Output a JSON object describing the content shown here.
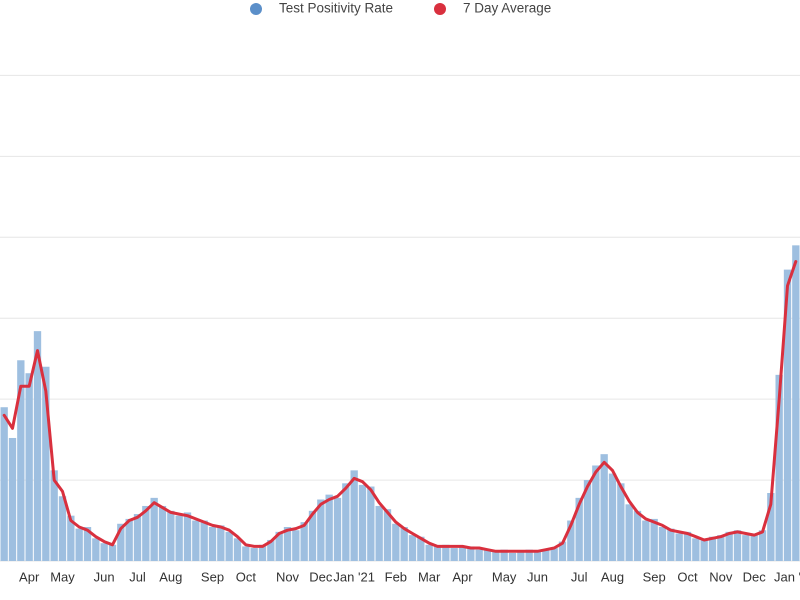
{
  "chart_data": {
    "type": "bar_line",
    "categories": [
      null,
      null,
      null,
      "Apr",
      null,
      null,
      null,
      "May",
      null,
      null,
      null,
      null,
      "Jun",
      null,
      null,
      null,
      "Jul",
      null,
      null,
      null,
      "Aug",
      null,
      null,
      null,
      null,
      "Sep",
      null,
      null,
      null,
      "Oct",
      null,
      null,
      null,
      null,
      "Nov",
      null,
      null,
      null,
      "Dec",
      null,
      null,
      null,
      "Jan '21",
      null,
      null,
      null,
      null,
      "Feb",
      null,
      null,
      null,
      "Mar",
      null,
      null,
      null,
      "Apr",
      null,
      null,
      null,
      null,
      "May",
      null,
      null,
      null,
      "Jun",
      null,
      null,
      null,
      null,
      "Jul",
      null,
      null,
      null,
      "Aug",
      null,
      null,
      null,
      null,
      "Sep",
      null,
      null,
      null,
      "Oct",
      null,
      null,
      null,
      "Nov",
      null,
      null,
      null,
      "Dec",
      null,
      null,
      null,
      "Jan '",
      null
    ],
    "series": [
      {
        "name": "Test Positivity Rate",
        "color": "#9ebfe0",
        "legend_color": "#5b8fc9",
        "kind": "bar",
        "values": [
          9.5,
          7.6,
          12.4,
          11.6,
          14.2,
          12.0,
          5.6,
          4.0,
          2.8,
          2.0,
          2.1,
          1.4,
          1.1,
          1.0,
          2.3,
          2.6,
          2.9,
          3.4,
          3.9,
          3.4,
          3.1,
          2.8,
          3.0,
          2.5,
          2.5,
          2.1,
          2.2,
          1.8,
          1.4,
          0.9,
          0.8,
          1.0,
          1.3,
          1.8,
          2.1,
          1.9,
          2.4,
          3.1,
          3.8,
          4.1,
          3.9,
          4.8,
          5.6,
          4.7,
          4.6,
          3.4,
          3.2,
          2.3,
          2.1,
          1.6,
          1.5,
          1.0,
          0.9,
          1.0,
          0.8,
          0.9,
          0.9,
          0.7,
          0.7,
          0.6,
          0.7,
          0.5,
          0.6,
          0.7,
          0.6,
          0.7,
          0.8,
          1.2,
          2.5,
          3.9,
          5.0,
          5.9,
          6.6,
          5.4,
          4.8,
          3.5,
          3.1,
          2.5,
          2.6,
          2.1,
          2.0,
          1.7,
          1.8,
          1.4,
          1.3,
          1.5,
          1.6,
          1.8,
          1.9,
          1.6,
          1.7,
          1.9,
          4.2,
          11.5,
          18.0,
          19.5
        ]
      },
      {
        "name": "7 Day Average",
        "color": "#d9303e",
        "kind": "line",
        "values": [
          9.0,
          8.2,
          10.8,
          10.8,
          13.0,
          10.5,
          5.0,
          4.3,
          2.5,
          2.1,
          1.9,
          1.5,
          1.2,
          1.0,
          2.0,
          2.5,
          2.7,
          3.1,
          3.6,
          3.3,
          3.0,
          2.9,
          2.8,
          2.6,
          2.4,
          2.2,
          2.1,
          1.9,
          1.5,
          1.0,
          0.9,
          0.9,
          1.2,
          1.7,
          1.9,
          2.0,
          2.2,
          2.9,
          3.5,
          3.8,
          4.0,
          4.5,
          5.1,
          4.9,
          4.4,
          3.6,
          3.0,
          2.4,
          2.0,
          1.7,
          1.4,
          1.1,
          0.9,
          0.9,
          0.9,
          0.9,
          0.8,
          0.8,
          0.7,
          0.6,
          0.6,
          0.6,
          0.6,
          0.6,
          0.6,
          0.7,
          0.8,
          1.1,
          2.2,
          3.5,
          4.6,
          5.5,
          6.1,
          5.6,
          4.6,
          3.7,
          3.0,
          2.6,
          2.4,
          2.2,
          1.9,
          1.8,
          1.7,
          1.5,
          1.3,
          1.4,
          1.5,
          1.7,
          1.8,
          1.7,
          1.6,
          1.8,
          3.5,
          10.0,
          17.0,
          18.5
        ]
      }
    ],
    "ylim": [
      0,
      32
    ],
    "yticks": [
      0,
      5,
      10,
      15,
      20,
      25,
      30
    ],
    "grid": true
  }
}
